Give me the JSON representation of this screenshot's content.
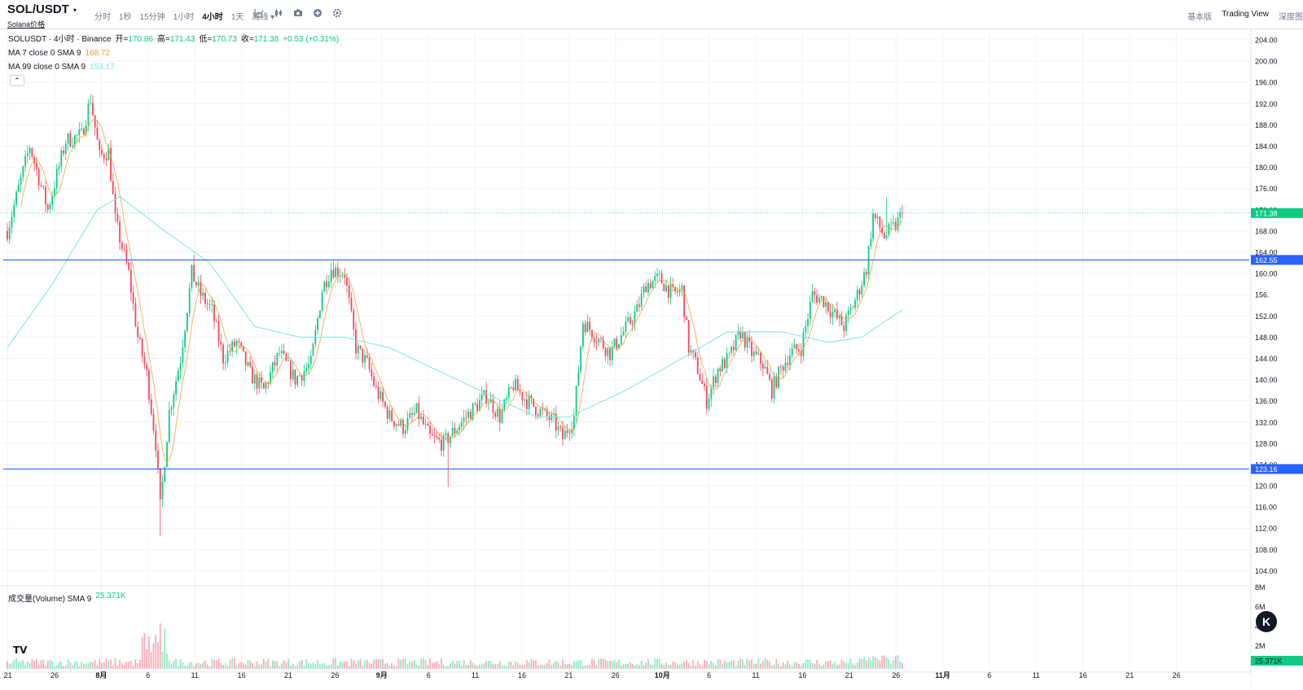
{
  "header": {
    "pair": "SOL/USDT",
    "pair_caret": "▾",
    "subtitle": "Solana价格",
    "intervals": [
      {
        "label": "分时",
        "active": false
      },
      {
        "label": "1秒",
        "active": false
      },
      {
        "label": "15分钟",
        "active": false
      },
      {
        "label": "1小时",
        "active": false
      },
      {
        "label": "4小时",
        "active": true
      },
      {
        "label": "1天",
        "active": false
      },
      {
        "label": "周线 ▾",
        "active": false
      }
    ],
    "tools": [
      "indicator-icon",
      "candle-type-icon",
      "camera-icon",
      "add-icon",
      "settings-icon"
    ],
    "views": [
      {
        "label": "基本版",
        "active": false
      },
      {
        "label": "Trading View",
        "active": true
      },
      {
        "label": "深度图",
        "active": false
      }
    ]
  },
  "legend": {
    "symbol": "SOLUSDT · 4小时 · Binance",
    "open_label": "开=",
    "open": "170.86",
    "high_label": "高=",
    "high": "171.43",
    "low_label": "低=",
    "low": "170.73",
    "close_label": "收=",
    "close": "171.38",
    "change": "+0.53 (+0.31%)",
    "ma7_label": "MA 7 close 0 SMA 9",
    "ma7_value": "168.72",
    "ma99_label": "MA 99 close 0 SMA 9",
    "ma99_value": "153.17",
    "collapse": "⌃"
  },
  "volume_legend": {
    "label": "成交量(Volume) SMA 9",
    "value": "25.371K"
  },
  "logo_text": "TV",
  "k_button": "K",
  "colors": {
    "up": "#0ecb81",
    "down": "#f6465d",
    "ma7": "#f0a030",
    "ma99": "#7de3e6",
    "hline": "#2962ff",
    "grid": "#f0f3fa"
  },
  "chart_data": {
    "type": "candlestick",
    "y_axis_ticks": [
      "204.00",
      "200.00",
      "196.00",
      "192.00",
      "188.00",
      "184.00",
      "180.00",
      "176.00",
      "172.00",
      "168.00",
      "164.00",
      "160.00",
      "156.",
      "152.00",
      "148.00",
      "144.00",
      "140.00",
      "136.00",
      "132.00",
      "128.00",
      "124.00",
      "120.00",
      "116.00",
      "112.00",
      "108.00",
      "104.00"
    ],
    "volume_axis_ticks": [
      "8M",
      "6M",
      "4M",
      "2M"
    ],
    "x_axis_ticks": [
      "21",
      "26",
      "8月",
      "6",
      "11",
      "16",
      "21",
      "26",
      "9月",
      "6",
      "11",
      "16",
      "21",
      "26",
      "10月",
      "6",
      "11",
      "16",
      "21",
      "26",
      "11月",
      "6",
      "11",
      "16",
      "21",
      "26"
    ],
    "price_labels": [
      {
        "text": "171.38",
        "value": 171.38,
        "color": "#0ecb81"
      },
      {
        "text": "162.55",
        "value": 162.55,
        "color": "#2962ff"
      },
      {
        "text": "123.16",
        "value": 123.16,
        "color": "#2962ff"
      }
    ],
    "volume_label": {
      "text": "25.371K",
      "color": "#0ecb81"
    },
    "horizontal_lines": [
      162.55,
      123.16
    ],
    "last_close": 171.38,
    "y_range": [
      101,
      206
    ],
    "path_keypoints": [
      {
        "t": 0,
        "p": 168
      },
      {
        "t": 10,
        "p": 184
      },
      {
        "t": 18,
        "p": 172
      },
      {
        "t": 26,
        "p": 185
      },
      {
        "t": 33,
        "p": 186
      },
      {
        "t": 37,
        "p": 193
      },
      {
        "t": 41,
        "p": 182
      },
      {
        "t": 45,
        "p": 183
      },
      {
        "t": 48,
        "p": 170
      },
      {
        "t": 54,
        "p": 160
      },
      {
        "t": 58,
        "p": 148
      },
      {
        "t": 62,
        "p": 141
      },
      {
        "t": 66,
        "p": 128
      },
      {
        "t": 68,
        "p": 116
      },
      {
        "t": 72,
        "p": 134
      },
      {
        "t": 77,
        "p": 144
      },
      {
        "t": 82,
        "p": 160
      },
      {
        "t": 86,
        "p": 156
      },
      {
        "t": 91,
        "p": 153
      },
      {
        "t": 96,
        "p": 144
      },
      {
        "t": 102,
        "p": 147
      },
      {
        "t": 108,
        "p": 141
      },
      {
        "t": 114,
        "p": 138
      },
      {
        "t": 121,
        "p": 145
      },
      {
        "t": 128,
        "p": 140
      },
      {
        "t": 135,
        "p": 143
      },
      {
        "t": 140,
        "p": 157
      },
      {
        "t": 144,
        "p": 161
      },
      {
        "t": 150,
        "p": 160
      },
      {
        "t": 155,
        "p": 146
      },
      {
        "t": 160,
        "p": 143
      },
      {
        "t": 164,
        "p": 138
      },
      {
        "t": 170,
        "p": 133
      },
      {
        "t": 176,
        "p": 131
      },
      {
        "t": 182,
        "p": 134
      },
      {
        "t": 188,
        "p": 129
      },
      {
        "t": 194,
        "p": 128
      },
      {
        "t": 200,
        "p": 131
      },
      {
        "t": 206,
        "p": 134
      },
      {
        "t": 213,
        "p": 137
      },
      {
        "t": 219,
        "p": 133
      },
      {
        "t": 225,
        "p": 139
      },
      {
        "t": 231,
        "p": 136
      },
      {
        "t": 237,
        "p": 134
      },
      {
        "t": 243,
        "p": 132
      },
      {
        "t": 247,
        "p": 129
      },
      {
        "t": 252,
        "p": 133
      },
      {
        "t": 256,
        "p": 151
      },
      {
        "t": 262,
        "p": 148
      },
      {
        "t": 268,
        "p": 145
      },
      {
        "t": 274,
        "p": 149
      },
      {
        "t": 280,
        "p": 153
      },
      {
        "t": 284,
        "p": 158
      },
      {
        "t": 290,
        "p": 159
      },
      {
        "t": 296,
        "p": 156
      },
      {
        "t": 300,
        "p": 157
      },
      {
        "t": 303,
        "p": 146
      },
      {
        "t": 307,
        "p": 142
      },
      {
        "t": 311,
        "p": 136
      },
      {
        "t": 316,
        "p": 142
      },
      {
        "t": 321,
        "p": 144
      },
      {
        "t": 326,
        "p": 149
      },
      {
        "t": 331,
        "p": 145
      },
      {
        "t": 336,
        "p": 143
      },
      {
        "t": 340,
        "p": 138
      },
      {
        "t": 344,
        "p": 142
      },
      {
        "t": 348,
        "p": 145
      },
      {
        "t": 353,
        "p": 146
      },
      {
        "t": 358,
        "p": 156
      },
      {
        "t": 363,
        "p": 155
      },
      {
        "t": 368,
        "p": 152
      },
      {
        "t": 372,
        "p": 150
      },
      {
        "t": 378,
        "p": 156
      },
      {
        "t": 382,
        "p": 161
      },
      {
        "t": 385,
        "p": 171
      },
      {
        "t": 390,
        "p": 167
      },
      {
        "t": 395,
        "p": 169
      },
      {
        "t": 398,
        "p": 171.4
      }
    ],
    "ma99_keypoints": [
      {
        "t": 0,
        "p": 146
      },
      {
        "t": 20,
        "p": 158
      },
      {
        "t": 40,
        "p": 172
      },
      {
        "t": 50,
        "p": 174.5
      },
      {
        "t": 70,
        "p": 168
      },
      {
        "t": 90,
        "p": 162
      },
      {
        "t": 110,
        "p": 150
      },
      {
        "t": 130,
        "p": 148
      },
      {
        "t": 150,
        "p": 148
      },
      {
        "t": 170,
        "p": 146
      },
      {
        "t": 195,
        "p": 141
      },
      {
        "t": 215,
        "p": 137
      },
      {
        "t": 235,
        "p": 133
      },
      {
        "t": 250,
        "p": 133
      },
      {
        "t": 275,
        "p": 138
      },
      {
        "t": 300,
        "p": 144
      },
      {
        "t": 320,
        "p": 149
      },
      {
        "t": 345,
        "p": 149
      },
      {
        "t": 365,
        "p": 147
      },
      {
        "t": 380,
        "p": 148
      },
      {
        "t": 398,
        "p": 153.17
      }
    ]
  }
}
